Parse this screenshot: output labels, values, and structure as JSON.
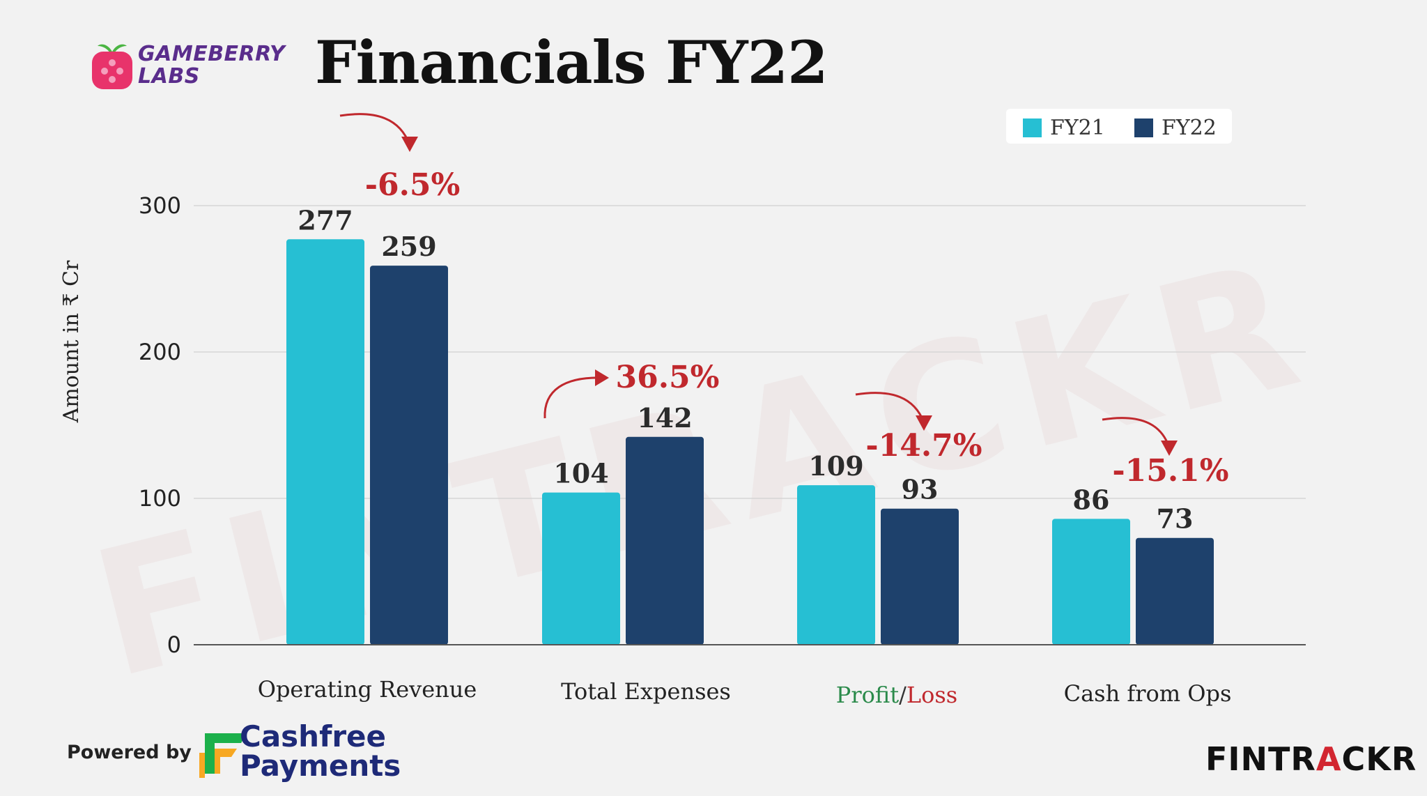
{
  "brand": {
    "logo_text_line1": "GAMEBERRY",
    "logo_text_line2": "LABS",
    "logo_color": "#e8336b"
  },
  "title": "Financials FY22",
  "legend": {
    "items": [
      {
        "label": "FY21",
        "color": "#26bfd3"
      },
      {
        "label": "FY22",
        "color": "#1e416c"
      }
    ]
  },
  "watermark": "FINTRACKR",
  "footer": {
    "powered_by": "Powered by",
    "partner_line1": "Cashfree",
    "partner_line2": "Payments",
    "partner_colors": {
      "accent_orange": "#f7a823",
      "accent_green": "#1cb04b"
    },
    "source_brand_part1": "FINTR",
    "source_brand_part2": "A",
    "source_brand_part3": "CKR",
    "source_brand_colors": {
      "dark": "#111111",
      "red": "#d22630"
    }
  },
  "chart_data": {
    "type": "bar",
    "categories": [
      "Operating Revenue",
      "Total Expenses",
      "Profit/Loss",
      "Cash from Ops"
    ],
    "category_label_parts": {
      "Profit/Loss": [
        {
          "text": "Profit",
          "color": "#2a8a4a"
        },
        {
          "text": "/",
          "color": "#333333"
        },
        {
          "text": "Loss",
          "color": "#c0282d"
        }
      ]
    },
    "series": [
      {
        "name": "FY21",
        "values": [
          277,
          104,
          109,
          86
        ],
        "color": "#26bfd3"
      },
      {
        "name": "FY22",
        "values": [
          259,
          142,
          93,
          73
        ],
        "color": "#1e416c"
      }
    ],
    "data_labels": [
      [
        "277",
        "259"
      ],
      [
        "104",
        "142"
      ],
      [
        "109",
        "93"
      ],
      [
        "86",
        "73"
      ]
    ],
    "annotations": [
      "-6.5%",
      "36.5%",
      "-14.7%",
      "-15.1%"
    ],
    "annotation_color": "#c0282d",
    "ylabel": "Amount in ₹ Cr",
    "xlabel": "",
    "ylim": [
      0,
      300
    ],
    "yticks": [
      0,
      100,
      200,
      300
    ],
    "grid": true,
    "legend_position": "top-right"
  }
}
